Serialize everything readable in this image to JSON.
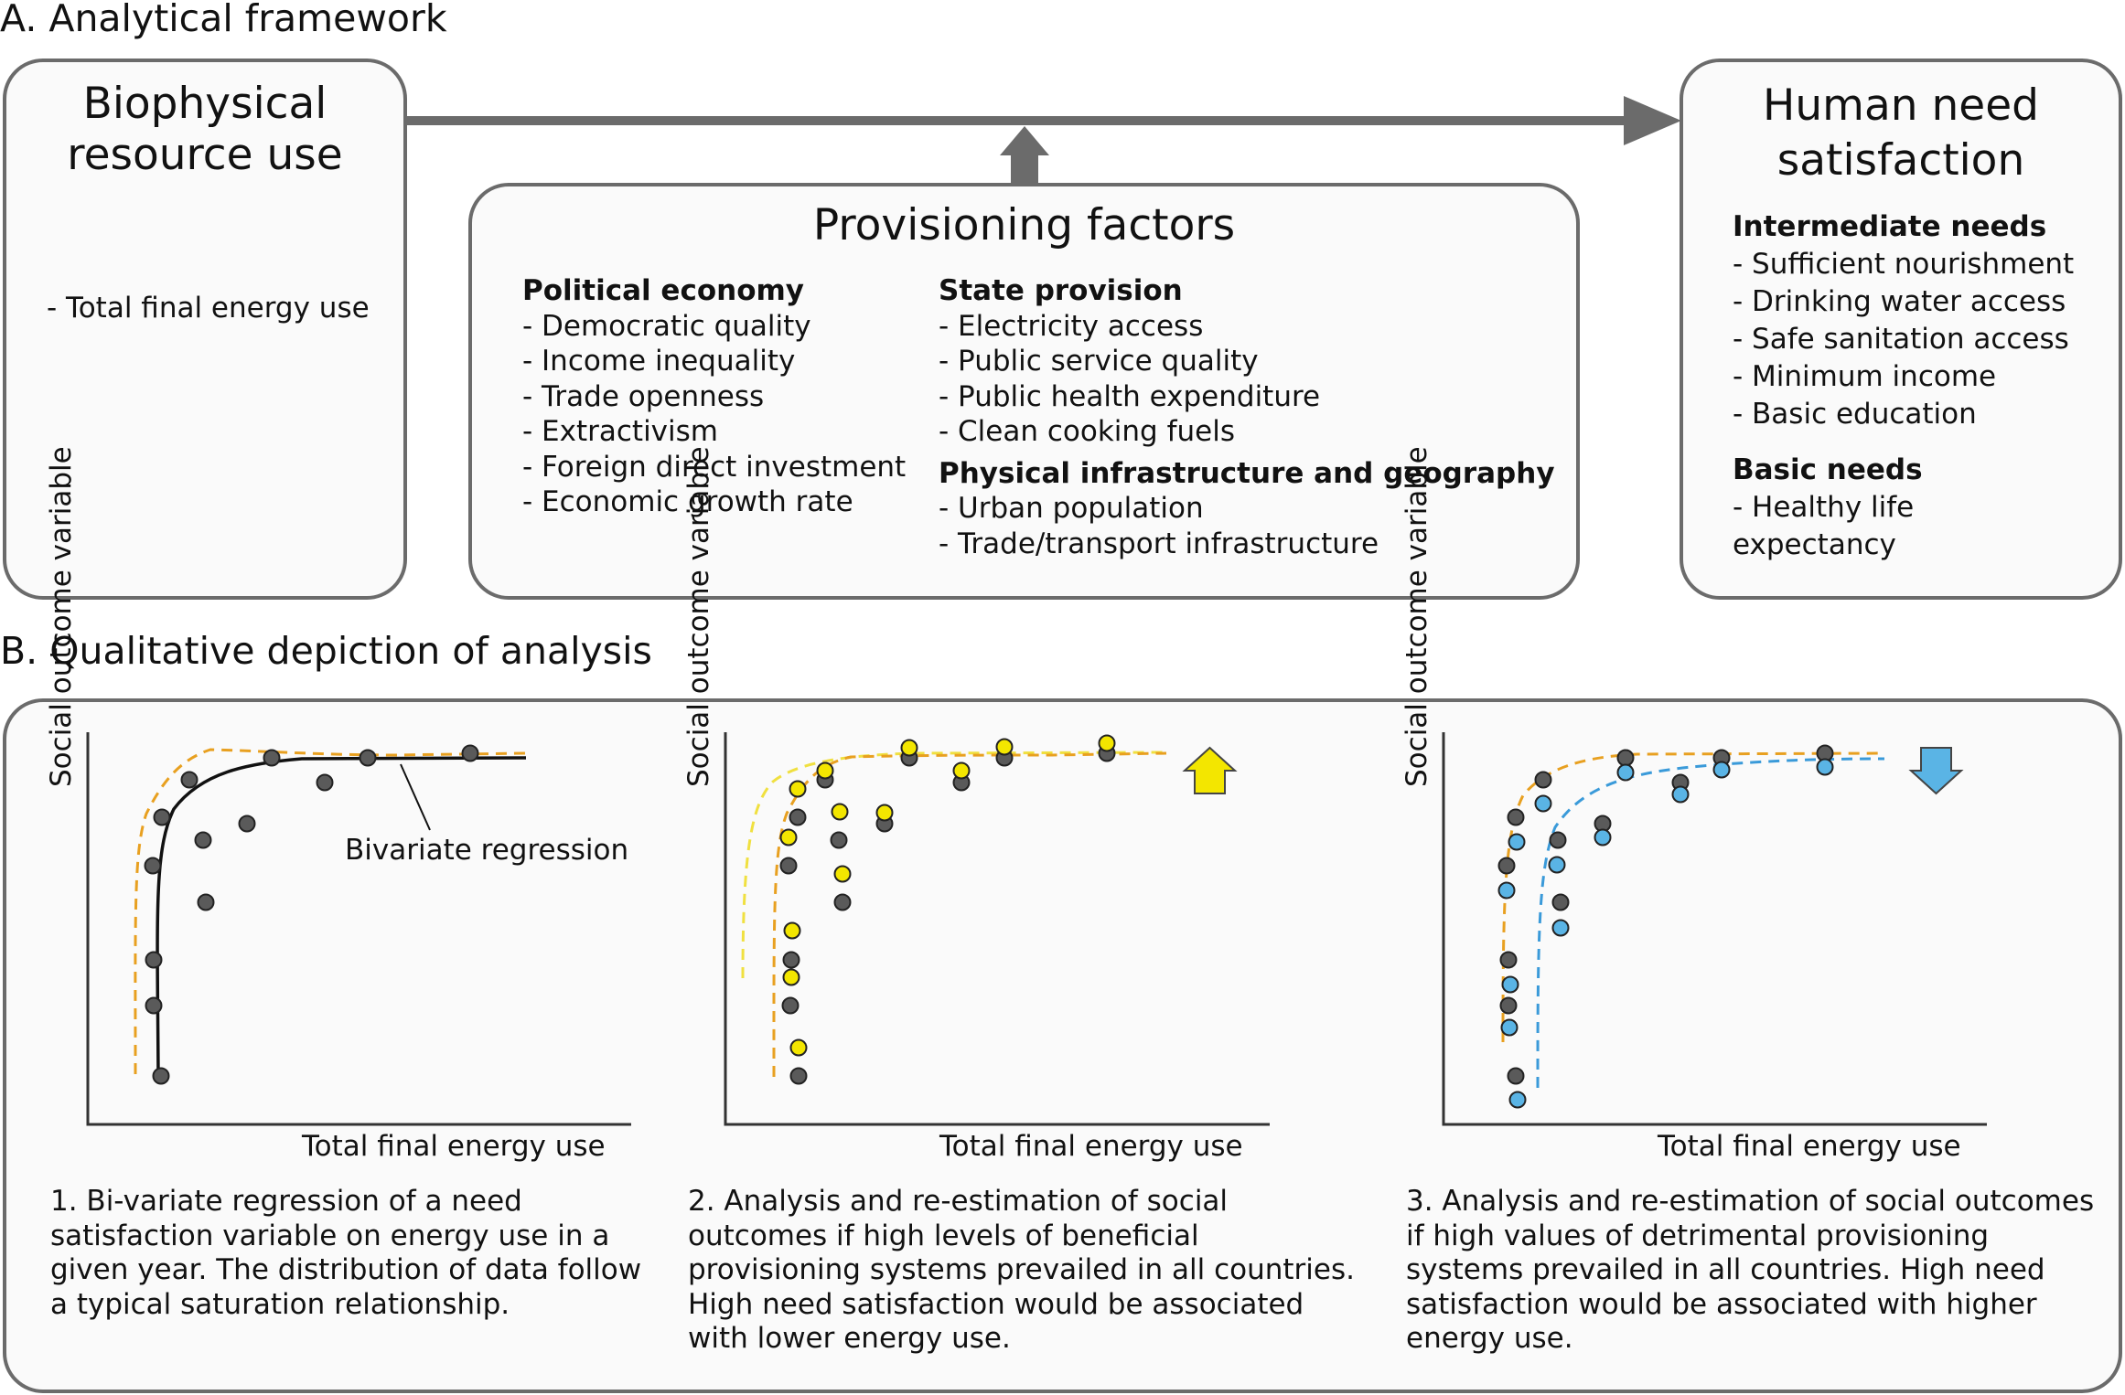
{
  "section_a": {
    "heading": "A. Analytical framework",
    "biophysical": {
      "title_line1": "Biophysical",
      "title_line2": "resource use",
      "items": [
        "- Total final energy use"
      ]
    },
    "provisioning": {
      "title": "Provisioning factors",
      "political_economy": {
        "heading": "Political economy",
        "items": [
          "- Democratic quality",
          "- Income inequality",
          "- Trade openness",
          "- Extractivism",
          "- Foreign direct investment",
          "- Economic growth rate"
        ]
      },
      "state_provision": {
        "heading": "State provision",
        "items": [
          "- Electricity access",
          "- Public service quality",
          "- Public health expenditure",
          "- Clean cooking fuels"
        ]
      },
      "physical_infrastructure": {
        "heading": "Physical infrastructure and geography",
        "items": [
          "- Urban population",
          "- Trade/transport infrastructure"
        ]
      }
    },
    "human_need": {
      "title_line1": "Human need",
      "title_line2": "satisfaction",
      "intermediate": {
        "heading": "Intermediate needs",
        "items": [
          "- Sufficient nourishment",
          "- Drinking water access",
          "- Safe sanitation access",
          "- Minimum income",
          "- Basic education"
        ]
      },
      "basic": {
        "heading": "Basic needs",
        "items": [
          "- Healthy life",
          "expectancy"
        ]
      }
    }
  },
  "section_b": {
    "heading": "B. Qualitative depiction of analysis",
    "panels": [
      {
        "ylabel": "Social outcome variable",
        "xlabel": "Total final energy use",
        "annotation": "Bivariate regression",
        "caption": "1. Bi-variate regression of a need satisfaction variable on energy use in a given year. The distribution of data follow a typical saturation relationship."
      },
      {
        "ylabel": "Social outcome variable",
        "xlabel": "Total final energy use",
        "caption": "2. Analysis and re-estimation of social outcomes if high levels of beneficial provisioning systems prevailed in all countries. High need satisfaction would be associated with lower energy use."
      },
      {
        "ylabel": "Social outcome variable",
        "xlabel": "Total final energy use",
        "caption": "3. Analysis and re-estimation of social outcomes if high values of detrimental provisioning systems prevailed in all countries. High need satisfaction would be associated with higher energy use."
      }
    ]
  },
  "colors": {
    "border": "#6b6b6b",
    "arrow": "#6b6b6b",
    "dot_grey": "#555555",
    "dot_yellow": "#f3e600",
    "dot_blue": "#5ab4e5",
    "orange_dash": "#e8a020",
    "yellow_dash": "#f0e040",
    "blue_dash": "#3a9ad9"
  },
  "icons": {
    "up_arrow": "up-arrow-icon",
    "down_arrow": "down-arrow-icon"
  }
}
